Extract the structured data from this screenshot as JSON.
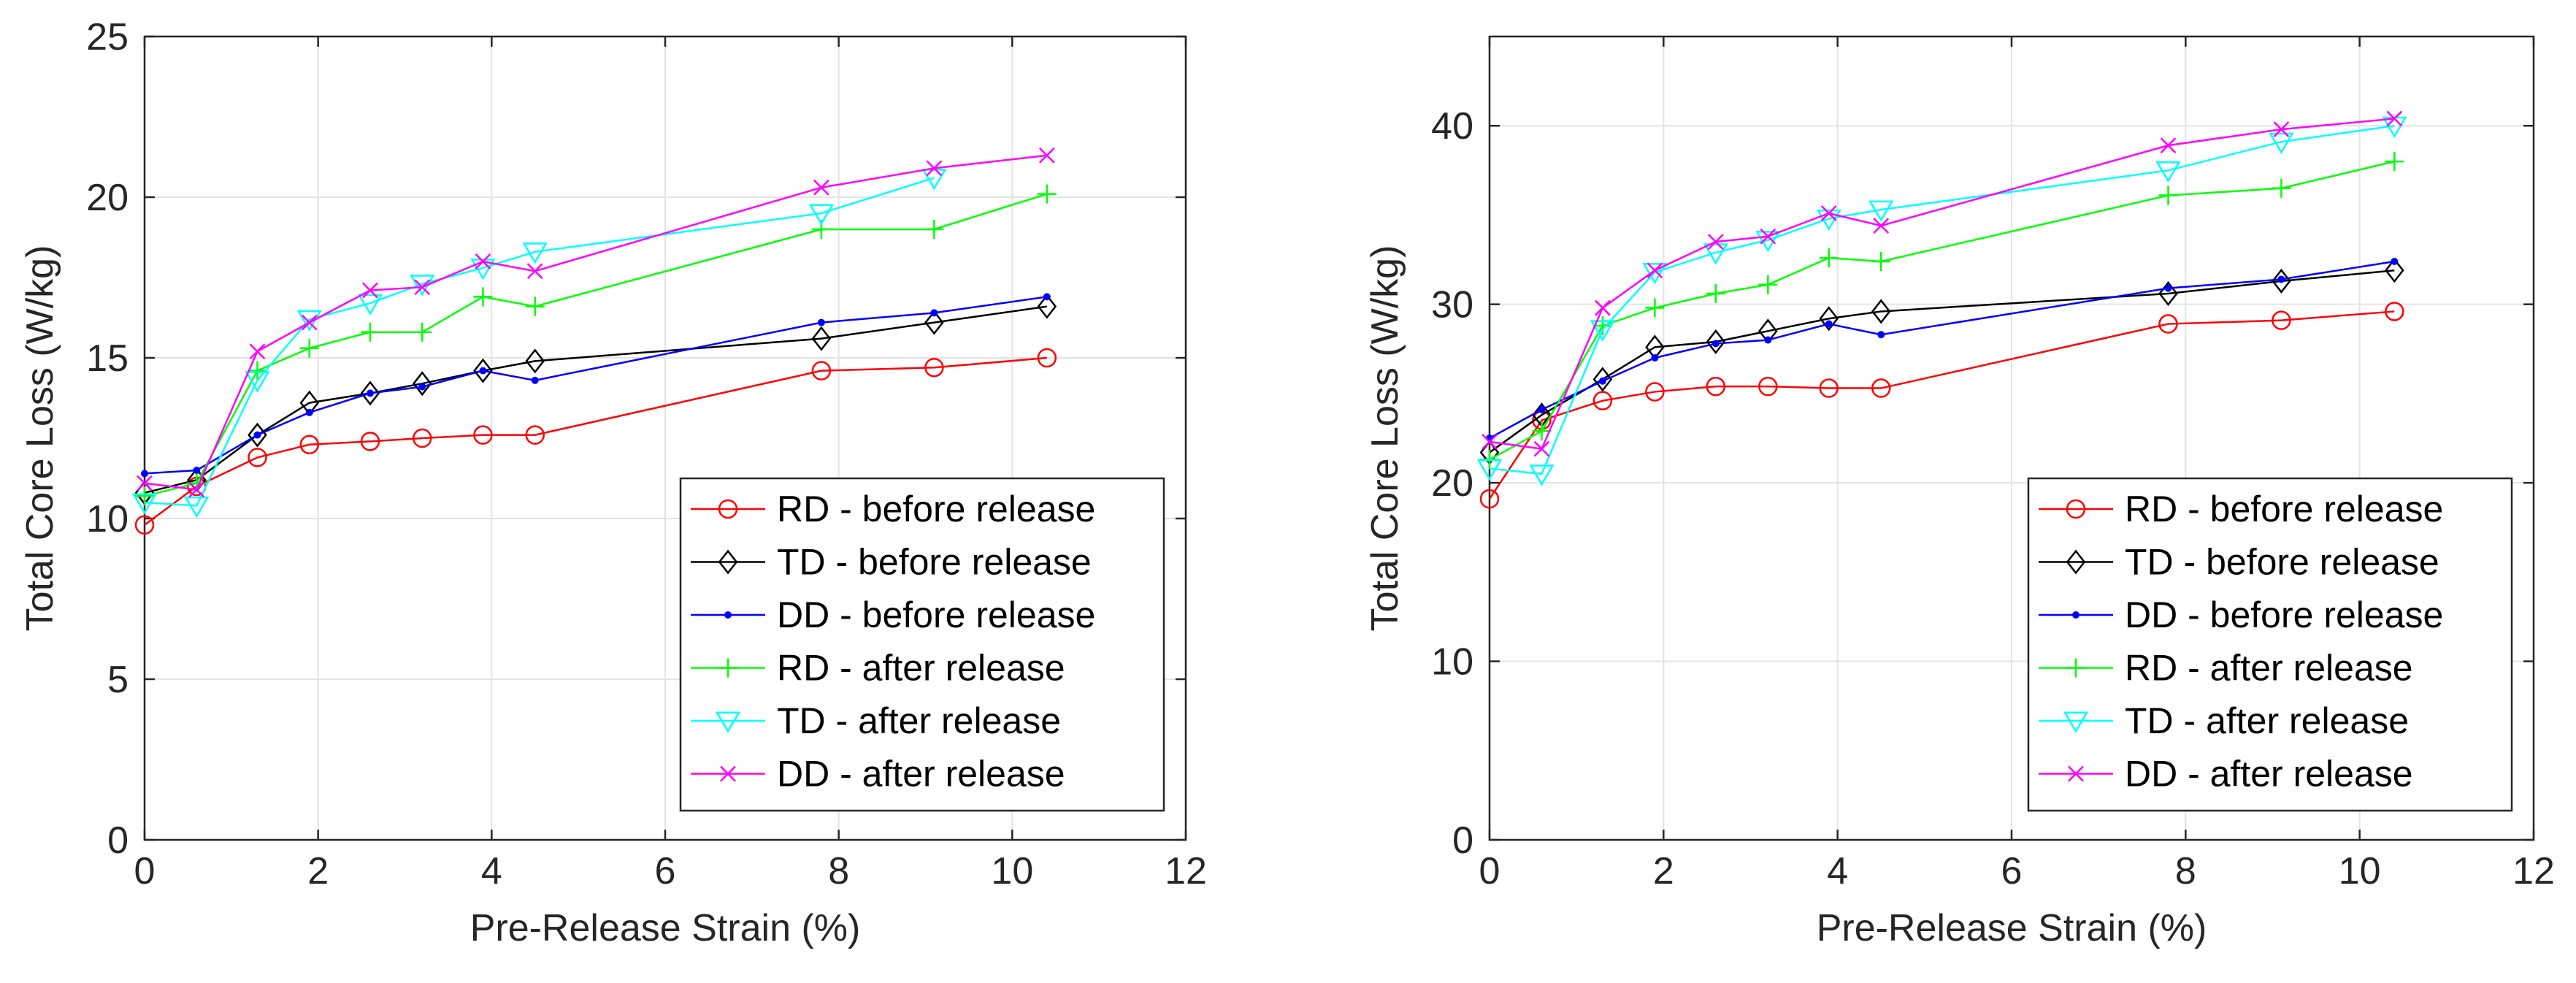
{
  "chart_data": [
    {
      "type": "line",
      "title": "",
      "xlabel": "Pre-Release Strain (%)",
      "ylabel": "Total Core Loss (W/kg)",
      "xlim": [
        0,
        12
      ],
      "ylim": [
        0,
        25
      ],
      "xticks": [
        0,
        2,
        4,
        6,
        8,
        10,
        12
      ],
      "yticks": [
        0,
        5,
        10,
        15,
        20,
        25
      ],
      "grid": true,
      "legend_position": "bottom-right",
      "x": [
        0,
        0.6,
        1.3,
        1.9,
        2.6,
        3.2,
        3.9,
        4.5,
        7.8,
        9.1,
        10.4
      ],
      "series": [
        {
          "name": "RD - before release",
          "color": "#ff0000",
          "marker": "circle",
          "values": [
            9.8,
            11.0,
            11.9,
            12.3,
            12.4,
            12.5,
            12.6,
            12.6,
            14.6,
            14.7,
            15.0
          ]
        },
        {
          "name": "TD - before release",
          "color": "#000000",
          "marker": "diamond",
          "values": [
            10.8,
            11.2,
            12.6,
            13.6,
            13.9,
            14.2,
            14.6,
            14.9,
            15.6,
            16.1,
            16.6
          ]
        },
        {
          "name": "DD - before release",
          "color": "#0000ff",
          "marker": "dot",
          "values": [
            11.4,
            11.5,
            12.6,
            13.3,
            13.9,
            14.1,
            14.6,
            14.3,
            16.1,
            16.4,
            16.9
          ]
        },
        {
          "name": "RD - after release",
          "color": "#00ff00",
          "marker": "plus",
          "values": [
            10.7,
            11.1,
            14.6,
            15.3,
            15.8,
            15.8,
            16.9,
            16.6,
            19.0,
            19.0,
            20.1
          ]
        },
        {
          "name": "TD - after release",
          "color": "#00ffff",
          "marker": "triangle-down",
          "values": [
            10.5,
            10.4,
            14.3,
            16.2,
            16.7,
            17.3,
            17.8,
            18.3,
            19.5,
            20.6,
            null
          ]
        },
        {
          "name": "DD - after release",
          "color": "#ff00ff",
          "marker": "x",
          "values": [
            11.1,
            10.9,
            15.2,
            16.1,
            17.1,
            17.2,
            18.0,
            17.7,
            20.3,
            20.9,
            21.3
          ]
        }
      ]
    },
    {
      "type": "line",
      "title": "",
      "xlabel": "Pre-Release Strain (%)",
      "ylabel": "Total Core Loss (W/kg)",
      "xlim": [
        0,
        12
      ],
      "ylim": [
        0,
        45
      ],
      "xticks": [
        0,
        2,
        4,
        6,
        8,
        10,
        12
      ],
      "yticks": [
        0,
        10,
        20,
        30,
        40
      ],
      "grid": true,
      "legend_position": "bottom-right",
      "x": [
        0,
        0.6,
        1.3,
        1.9,
        2.6,
        3.2,
        3.9,
        4.5,
        7.8,
        9.1,
        10.4
      ],
      "series": [
        {
          "name": "RD - before release",
          "color": "#ff0000",
          "marker": "circle",
          "values": [
            19.1,
            23.5,
            24.6,
            25.1,
            25.4,
            25.4,
            25.3,
            25.3,
            28.9,
            29.1,
            29.6
          ]
        },
        {
          "name": "TD - before release",
          "color": "#000000",
          "marker": "diamond",
          "values": [
            21.7,
            23.8,
            25.8,
            27.6,
            27.9,
            28.5,
            29.2,
            29.6,
            30.6,
            31.3,
            31.9
          ]
        },
        {
          "name": "DD - before release",
          "color": "#0000ff",
          "marker": "dot",
          "values": [
            22.5,
            24.1,
            25.7,
            27.0,
            27.8,
            28.0,
            28.9,
            28.3,
            30.9,
            31.4,
            32.4
          ]
        },
        {
          "name": "RD - after release",
          "color": "#00ff00",
          "marker": "plus",
          "values": [
            21.3,
            22.9,
            28.8,
            29.8,
            30.6,
            31.1,
            32.6,
            32.4,
            36.1,
            36.5,
            38.0
          ]
        },
        {
          "name": "TD - after release",
          "color": "#00ffff",
          "marker": "triangle-down",
          "values": [
            20.8,
            20.5,
            28.6,
            31.8,
            32.9,
            33.6,
            34.8,
            35.3,
            37.5,
            39.1,
            40.0
          ]
        },
        {
          "name": "DD - after release",
          "color": "#ff00ff",
          "marker": "x",
          "values": [
            22.3,
            21.9,
            29.8,
            31.9,
            33.5,
            33.8,
            35.1,
            34.4,
            38.9,
            39.8,
            40.4
          ]
        }
      ]
    }
  ]
}
